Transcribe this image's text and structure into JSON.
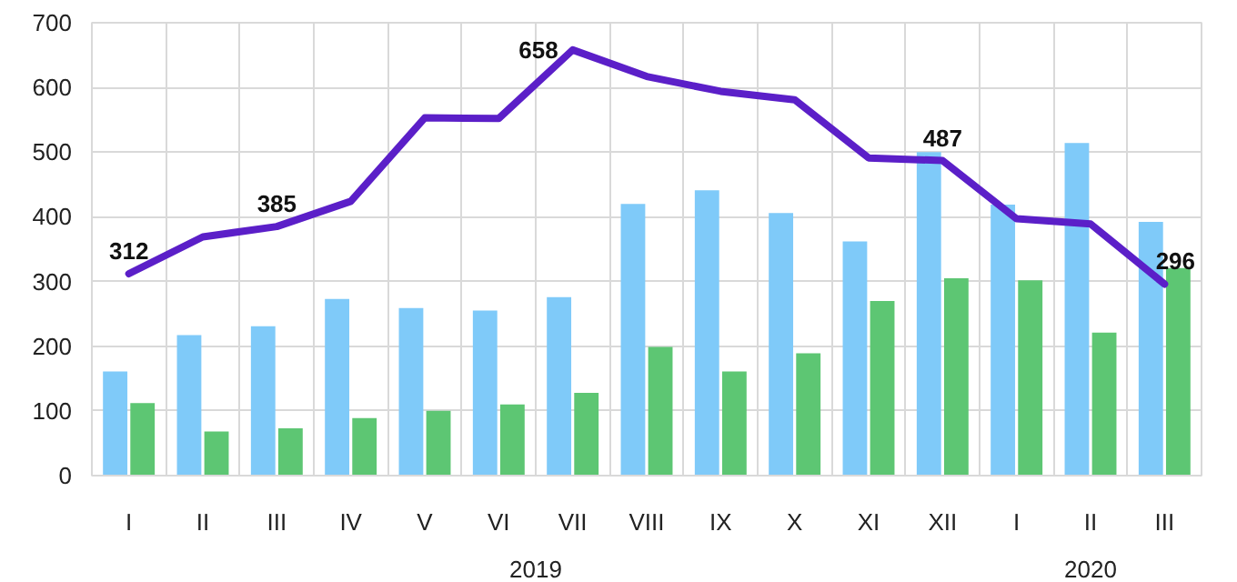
{
  "chart_data": {
    "type": "bar",
    "categories": [
      "I",
      "II",
      "III",
      "IV",
      "V",
      "VI",
      "VII",
      "VIII",
      "IX",
      "X",
      "XI",
      "XII",
      "I",
      "II",
      "III"
    ],
    "series": [
      {
        "color": "#7fcaf9",
        "values": [
          161,
          217,
          231,
          273,
          259,
          255,
          276,
          420,
          441,
          406,
          362,
          500,
          419,
          514,
          392
        ]
      },
      {
        "color": "#5dc673",
        "values": [
          112,
          68,
          73,
          89,
          100,
          110,
          128,
          199,
          161,
          189,
          270,
          305,
          302,
          221,
          321
        ]
      },
      {
        "type": "line",
        "color": "#5b1fc8",
        "values": [
          312,
          369,
          385,
          424,
          553,
          552,
          658,
          617,
          594,
          581,
          491,
          487,
          397,
          389,
          296
        ],
        "value_labels": [
          "312",
          null,
          "385",
          null,
          null,
          null,
          "658",
          null,
          null,
          null,
          null,
          "487",
          null,
          null,
          "296"
        ]
      }
    ],
    "annotations": [
      "2019",
      "2020"
    ],
    "ylim": [
      0,
      700
    ],
    "yticks": [
      0,
      100,
      200,
      300,
      400,
      500,
      600,
      700
    ],
    "grid": true
  }
}
